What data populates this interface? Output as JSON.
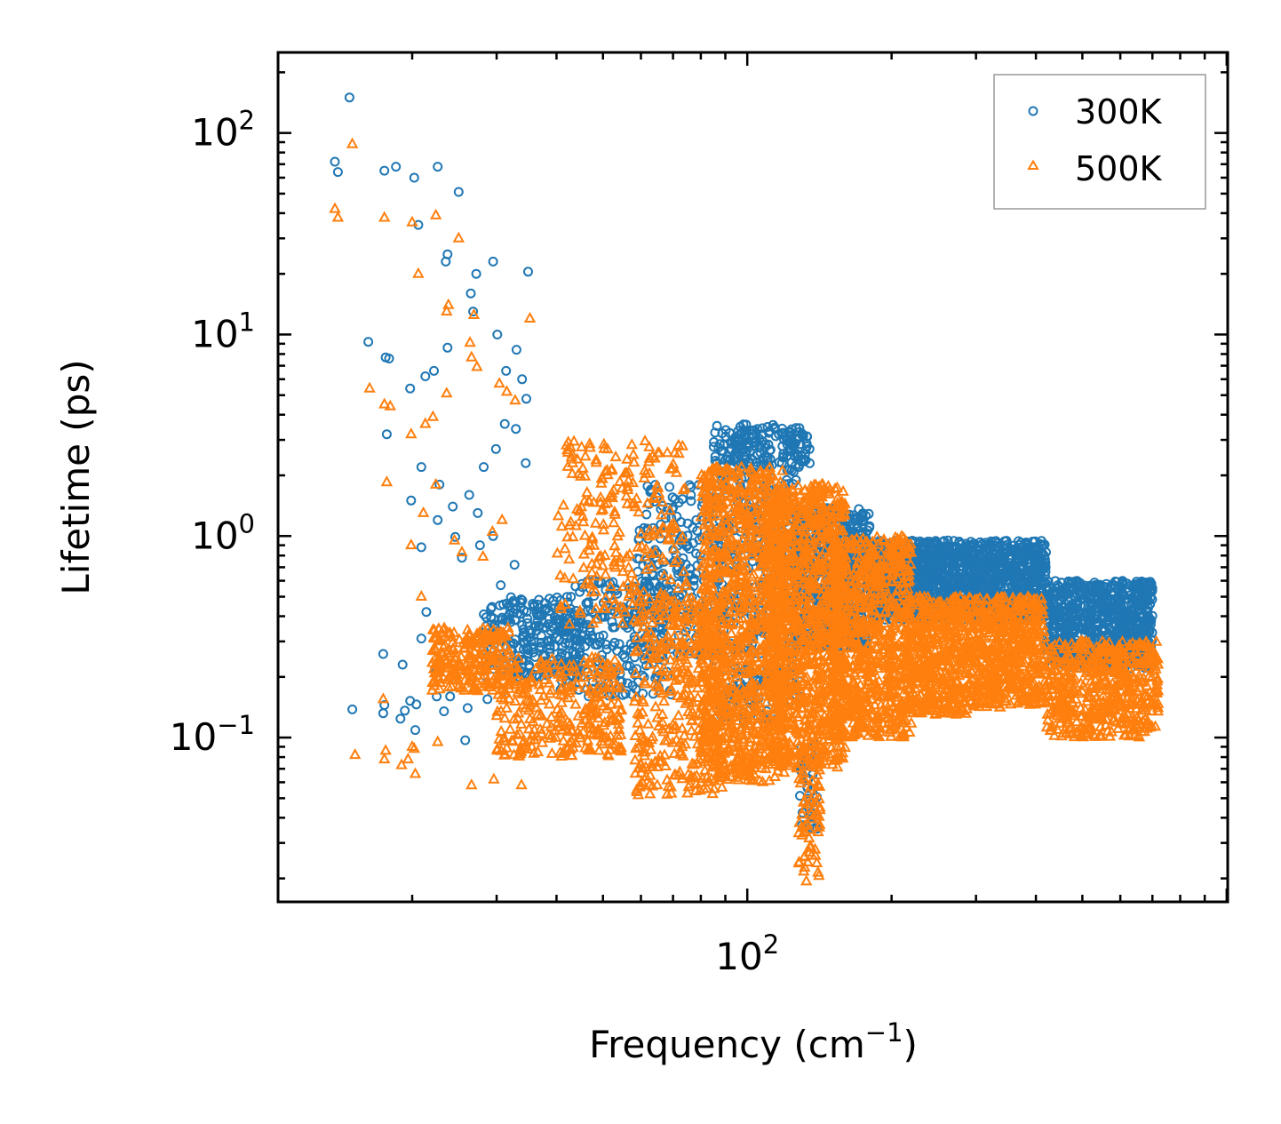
{
  "chart_data": {
    "type": "scatter",
    "title": "",
    "xlabel": "Frequency",
    "xlabel_unit": "(cm",
    "xlabel_unit_exp": "−1",
    "xlabel_unit_close": ")",
    "ylabel": "Lifetime (ps)",
    "xscale": "log",
    "yscale": "log",
    "xlim": [
      10.5,
      1005
    ],
    "ylim": [
      0.0153,
      251
    ],
    "x_ticks": [
      {
        "value": 100,
        "base": "10",
        "exp": "2"
      }
    ],
    "y_ticks": [
      {
        "value": 0.1,
        "base": "10",
        "exp": "−1"
      },
      {
        "value": 1,
        "base": "10",
        "exp": "0"
      },
      {
        "value": 10,
        "base": "10",
        "exp": "1"
      },
      {
        "value": 100,
        "base": "10",
        "exp": "2"
      }
    ],
    "legend_position": "top-right",
    "series": [
      {
        "name": "300K",
        "marker": "circle",
        "color": "#1f77b4",
        "points": [
          [
            13.8,
            72
          ],
          [
            14.0,
            64
          ],
          [
            14.8,
            150
          ],
          [
            17.5,
            65
          ],
          [
            18.5,
            68
          ],
          [
            20.2,
            60
          ],
          [
            22.6,
            68
          ],
          [
            25.0,
            51
          ],
          [
            23.5,
            23
          ],
          [
            23.7,
            25
          ],
          [
            27.2,
            20
          ],
          [
            29.5,
            23
          ],
          [
            20.6,
            35
          ],
          [
            16.2,
            9.2
          ],
          [
            17.6,
            7.7
          ],
          [
            17.9,
            7.6
          ],
          [
            19.8,
            5.4
          ],
          [
            22.2,
            6.6
          ],
          [
            23.7,
            8.6
          ],
          [
            26.5,
            16
          ],
          [
            26.8,
            13
          ],
          [
            30.1,
            10
          ],
          [
            31.4,
            6.6
          ],
          [
            33.0,
            8.4
          ],
          [
            34.9,
            20.5
          ],
          [
            33.9,
            6.0
          ],
          [
            34.6,
            4.8
          ],
          [
            21.3,
            6.2
          ],
          [
            17.7,
            3.2
          ],
          [
            20.9,
            2.2
          ],
          [
            19.9,
            1.5
          ],
          [
            22.8,
            1.8
          ],
          [
            24.3,
            1.4
          ],
          [
            26.3,
            1.6
          ],
          [
            27.4,
            1.3
          ],
          [
            28.2,
            2.2
          ],
          [
            29.9,
            2.7
          ],
          [
            31.2,
            3.6
          ],
          [
            32.9,
            3.4
          ],
          [
            34.5,
            2.3
          ],
          [
            20.9,
            0.88
          ],
          [
            22.6,
            1.2
          ],
          [
            24.6,
            0.99
          ],
          [
            25.4,
            0.78
          ],
          [
            27.7,
            0.9
          ],
          [
            29.5,
            1.0
          ],
          [
            30.6,
            0.57
          ],
          [
            32.7,
            0.72
          ],
          [
            17.4,
            0.26
          ],
          [
            19.1,
            0.23
          ],
          [
            20.9,
            0.31
          ],
          [
            21.4,
            0.42
          ],
          [
            22.4,
            0.21
          ],
          [
            15.0,
            0.138
          ],
          [
            17.4,
            0.132
          ],
          [
            17.5,
            0.145
          ],
          [
            18.9,
            0.124
          ],
          [
            19.3,
            0.136
          ],
          [
            19.8,
            0.152
          ],
          [
            20.3,
            0.109
          ],
          [
            20.4,
            0.146
          ],
          [
            23.3,
            0.135
          ],
          [
            25.8,
            0.097
          ],
          [
            22.5,
            0.16
          ],
          [
            24.0,
            0.16
          ],
          [
            26.1,
            0.14
          ],
          [
            28.7,
            0.155
          ],
          [
            31.0,
            0.17
          ]
        ],
        "cloud": [
          {
            "x": [
              28,
              45
            ],
            "y": [
              0.2,
              0.5
            ],
            "n": 260
          },
          {
            "x": [
              40,
              70
            ],
            "y": [
              0.16,
              0.6
            ],
            "n": 240
          },
          {
            "x": [
              58,
              90
            ],
            "y": [
              0.25,
              1.8
            ],
            "n": 240
          },
          {
            "x": [
              85,
              130
            ],
            "y": [
              0.12,
              3.6
            ],
            "n": 520
          },
          {
            "x": [
              125,
              180
            ],
            "y": [
              0.28,
              1.4
            ],
            "n": 620
          },
          {
            "x": [
              180,
              270
            ],
            "y": [
              0.38,
              0.95
            ],
            "n": 800
          },
          {
            "x": [
              270,
              420
            ],
            "y": [
              0.38,
              0.95
            ],
            "n": 800
          },
          {
            "x": [
              420,
              700
            ],
            "y": [
              0.22,
              0.6
            ],
            "n": 820
          },
          {
            "x": [
              95,
              115
            ],
            "y": [
              2.2,
              3.5
            ],
            "n": 50
          },
          {
            "x": [
              118,
              135
            ],
            "y": [
              2.2,
              3.3
            ],
            "n": 50
          },
          {
            "x": [
              128,
              140
            ],
            "y": [
              0.032,
              0.1
            ],
            "n": 40
          }
        ]
      },
      {
        "name": "500K",
        "marker": "triangle",
        "color": "#ff7f0e",
        "points": [
          [
            13.8,
            42
          ],
          [
            14.0,
            38
          ],
          [
            15.0,
            88
          ],
          [
            17.5,
            38
          ],
          [
            20.0,
            36
          ],
          [
            22.4,
            39
          ],
          [
            20.6,
            20
          ],
          [
            23.6,
            13
          ],
          [
            23.8,
            14
          ],
          [
            25.0,
            30
          ],
          [
            26.9,
            12.5
          ],
          [
            23.6,
            5.1
          ],
          [
            26.4,
            9.1
          ],
          [
            26.6,
            7.7
          ],
          [
            27.3,
            6.9
          ],
          [
            30.4,
            5.7
          ],
          [
            31.5,
            5.2
          ],
          [
            35.2,
            12
          ],
          [
            32.8,
            4.7
          ],
          [
            16.3,
            5.4
          ],
          [
            17.5,
            4.5
          ],
          [
            18.0,
            4.4
          ],
          [
            19.9,
            3.2
          ],
          [
            21.3,
            3.6
          ],
          [
            22.1,
            3.9
          ],
          [
            17.7,
            1.85
          ],
          [
            19.9,
            0.9
          ],
          [
            20.9,
            0.5
          ],
          [
            21.1,
            1.3
          ],
          [
            22.4,
            1.8
          ],
          [
            24.5,
            0.95
          ],
          [
            25.4,
            0.83
          ],
          [
            28.1,
            0.79
          ],
          [
            29.4,
            1.05
          ],
          [
            30.8,
            1.2
          ],
          [
            17.4,
            0.155
          ],
          [
            17.5,
            0.078
          ],
          [
            17.6,
            0.086
          ],
          [
            15.2,
            0.082
          ],
          [
            19.0,
            0.073
          ],
          [
            19.6,
            0.078
          ],
          [
            20.3,
            0.066
          ],
          [
            20.0,
            0.09
          ],
          [
            20.2,
            0.088
          ],
          [
            22.6,
            0.095
          ],
          [
            26.6,
            0.058
          ],
          [
            29.6,
            0.062
          ],
          [
            33.8,
            0.058
          ]
        ],
        "cloud": [
          {
            "x": [
              22,
              32
            ],
            "y": [
              0.17,
              0.35
            ],
            "n": 240
          },
          {
            "x": [
              30,
              55
            ],
            "y": [
              0.08,
              0.25
            ],
            "n": 300
          },
          {
            "x": [
              40,
              75
            ],
            "y": [
              0.35,
              3.0
            ],
            "n": 260
          },
          {
            "x": [
              58,
              90
            ],
            "y": [
              0.05,
              0.5
            ],
            "n": 360
          },
          {
            "x": [
              80,
              120
            ],
            "y": [
              0.06,
              2.2
            ],
            "n": 1100
          },
          {
            "x": [
              110,
              160
            ],
            "y": [
              0.07,
              1.8
            ],
            "n": 1100
          },
          {
            "x": [
              150,
              220
            ],
            "y": [
              0.1,
              1.0
            ],
            "n": 800
          },
          {
            "x": [
              128,
              142
            ],
            "y": [
              0.019,
              0.07
            ],
            "n": 60
          },
          {
            "x": [
              215,
              290
            ],
            "y": [
              0.13,
              0.5
            ],
            "n": 500
          },
          {
            "x": [
              290,
              420
            ],
            "y": [
              0.14,
              0.5
            ],
            "n": 550
          },
          {
            "x": [
              420,
              720
            ],
            "y": [
              0.1,
              0.3
            ],
            "n": 550
          }
        ]
      }
    ]
  }
}
